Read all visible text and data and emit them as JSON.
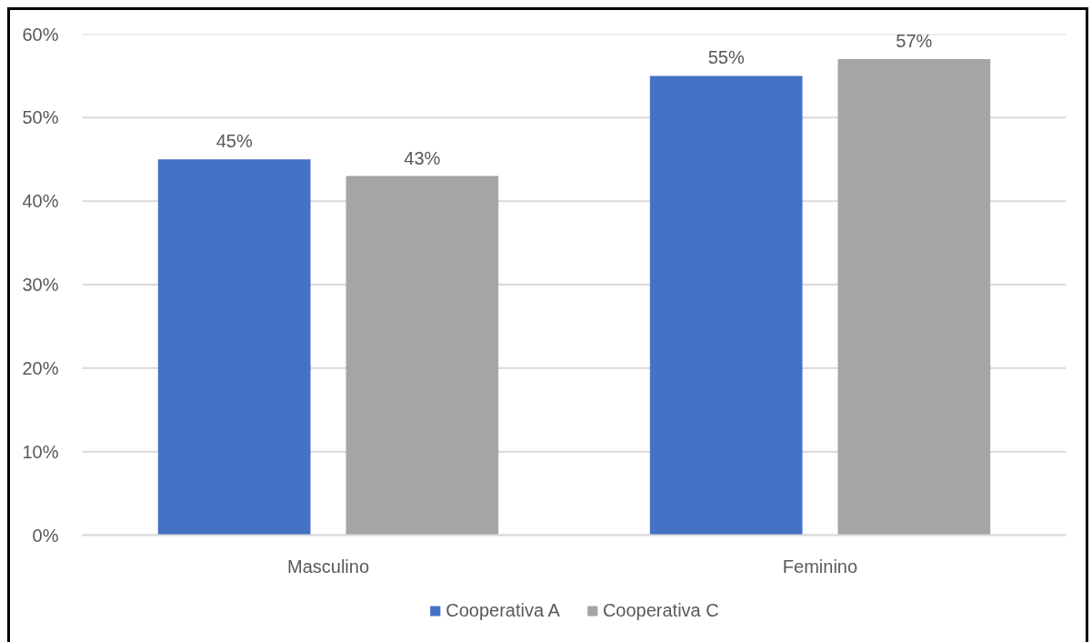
{
  "chart_data": {
    "type": "bar",
    "categories": [
      "Masculino",
      "Feminino"
    ],
    "series": [
      {
        "name": "Cooperativa A",
        "color": "#4472c4",
        "values": [
          45,
          55
        ],
        "value_labels": [
          "45%",
          "55%"
        ]
      },
      {
        "name": "Cooperativa C",
        "color": "#a5a5a5",
        "values": [
          43,
          57
        ],
        "value_labels": [
          "43%",
          "57%"
        ]
      }
    ],
    "ylim": [
      0,
      60
    ],
    "yticks": [
      {
        "value": 0,
        "label": "0%"
      },
      {
        "value": 10,
        "label": "10%"
      },
      {
        "value": 20,
        "label": "20%"
      },
      {
        "value": 30,
        "label": "30%"
      },
      {
        "value": 40,
        "label": "40%"
      },
      {
        "value": 50,
        "label": "50%"
      },
      {
        "value": 60,
        "label": "60%"
      }
    ],
    "grid": "y",
    "legend": "bottom"
  }
}
